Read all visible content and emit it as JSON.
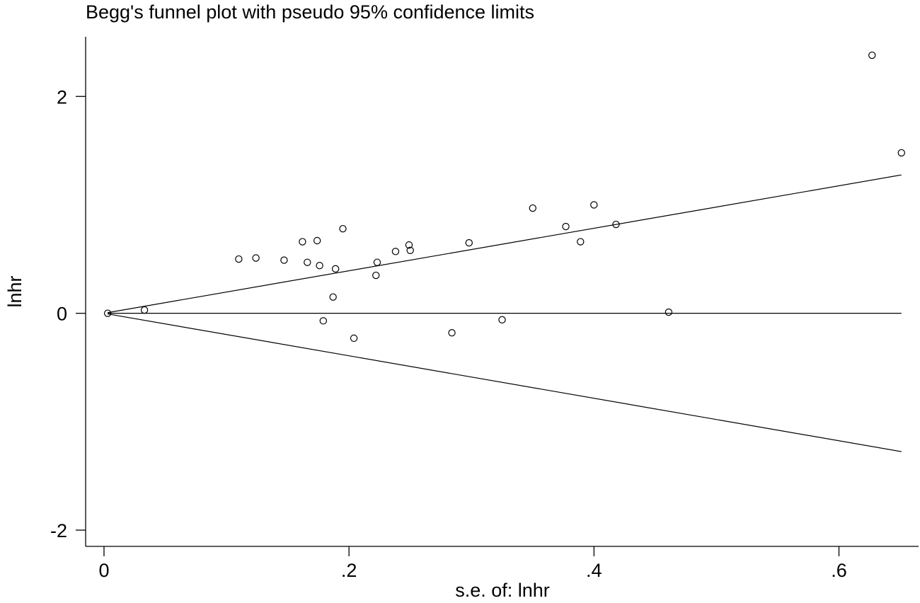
{
  "chart_data": {
    "type": "scatter",
    "title": "Begg's funnel plot with pseudo 95% confidence limits",
    "xlabel": "s.e. of: lnhr",
    "ylabel": "lnhr",
    "xlim": [
      -0.015,
      0.665
    ],
    "ylim": [
      -2.15,
      2.55
    ],
    "x_ticks": [
      {
        "value": 0,
        "label": "0"
      },
      {
        "value": 0.2,
        "label": ".2"
      },
      {
        "value": 0.4,
        "label": ".4"
      },
      {
        "value": 0.6,
        "label": ".6"
      }
    ],
    "y_ticks": [
      {
        "value": -2,
        "label": "-2"
      },
      {
        "value": 0,
        "label": "0"
      },
      {
        "value": 2,
        "label": "2"
      }
    ],
    "grid": false,
    "legend": "none",
    "pooled_estimate": 0,
    "funnel_limits": {
      "x_range": [
        0.003,
        0.651
      ],
      "z": 1.96
    },
    "points": [
      {
        "x": 0.003,
        "y": 0.0
      },
      {
        "x": 0.033,
        "y": 0.03
      },
      {
        "x": 0.11,
        "y": 0.5
      },
      {
        "x": 0.124,
        "y": 0.51
      },
      {
        "x": 0.147,
        "y": 0.49
      },
      {
        "x": 0.162,
        "y": 0.66
      },
      {
        "x": 0.166,
        "y": 0.47
      },
      {
        "x": 0.174,
        "y": 0.67
      },
      {
        "x": 0.176,
        "y": 0.44
      },
      {
        "x": 0.179,
        "y": -0.07
      },
      {
        "x": 0.187,
        "y": 0.15
      },
      {
        "x": 0.189,
        "y": 0.41
      },
      {
        "x": 0.195,
        "y": 0.78
      },
      {
        "x": 0.204,
        "y": -0.23
      },
      {
        "x": 0.222,
        "y": 0.35
      },
      {
        "x": 0.223,
        "y": 0.47
      },
      {
        "x": 0.238,
        "y": 0.57
      },
      {
        "x": 0.249,
        "y": 0.63
      },
      {
        "x": 0.25,
        "y": 0.58
      },
      {
        "x": 0.284,
        "y": -0.18
      },
      {
        "x": 0.298,
        "y": 0.65
      },
      {
        "x": 0.325,
        "y": -0.06
      },
      {
        "x": 0.35,
        "y": 0.97
      },
      {
        "x": 0.377,
        "y": 0.8
      },
      {
        "x": 0.389,
        "y": 0.66
      },
      {
        "x": 0.4,
        "y": 1.0
      },
      {
        "x": 0.418,
        "y": 0.82
      },
      {
        "x": 0.461,
        "y": 0.01
      },
      {
        "x": 0.627,
        "y": 2.38
      },
      {
        "x": 0.651,
        "y": 1.48
      }
    ]
  },
  "colors": {
    "background": "#ffffff",
    "ink": "#000000"
  }
}
